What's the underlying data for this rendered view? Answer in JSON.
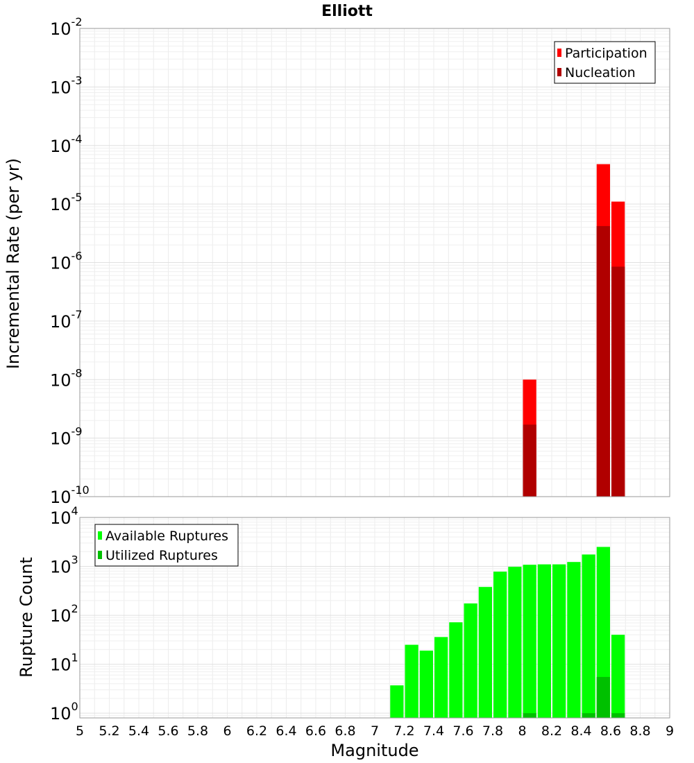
{
  "chart_data": [
    {
      "type": "bar",
      "title": "Elliott",
      "ylabel": "Incremental Rate (per yr)",
      "yscale": "log",
      "ylim": [
        1e-10,
        0.01
      ],
      "xlim": [
        5,
        9
      ],
      "grid": true,
      "legend_position": "top-right",
      "series": [
        {
          "name": "Participation",
          "color": "#ff0000",
          "points": [
            {
              "x": 8.05,
              "y": 1e-08
            },
            {
              "x": 8.55,
              "y": 4.8e-05
            },
            {
              "x": 8.65,
              "y": 1.1e-05
            }
          ]
        },
        {
          "name": "Nucleation",
          "color": "#b00000",
          "points": [
            {
              "x": 8.05,
              "y": 1.7e-09
            },
            {
              "x": 8.55,
              "y": 4.2e-06
            },
            {
              "x": 8.65,
              "y": 8.5e-07
            }
          ]
        }
      ],
      "y_tick_labels": [
        {
          "base": "10",
          "exp": "-10",
          "value": 1e-10
        },
        {
          "base": "10",
          "exp": "-9",
          "value": 1e-09
        },
        {
          "base": "10",
          "exp": "-8",
          "value": 1e-08
        },
        {
          "base": "10",
          "exp": "-7",
          "value": 1e-07
        },
        {
          "base": "10",
          "exp": "-6",
          "value": 1e-06
        },
        {
          "base": "10",
          "exp": "-5",
          "value": 1e-05
        },
        {
          "base": "10",
          "exp": "-4",
          "value": 0.0001
        },
        {
          "base": "10",
          "exp": "-3",
          "value": 0.001
        },
        {
          "base": "10",
          "exp": "-2",
          "value": 0.01
        }
      ]
    },
    {
      "type": "bar",
      "ylabel": "Rupture Count",
      "xlabel": "Magnitude",
      "yscale": "log",
      "ylim": [
        0.8,
        10000
      ],
      "xlim": [
        5,
        9
      ],
      "grid": true,
      "legend_position": "top-left",
      "series": [
        {
          "name": "Available Ruptures",
          "color": "#00ff00",
          "points": [
            {
              "x": 7.15,
              "y": 3.7
            },
            {
              "x": 7.25,
              "y": 25
            },
            {
              "x": 7.35,
              "y": 19
            },
            {
              "x": 7.45,
              "y": 36
            },
            {
              "x": 7.55,
              "y": 72
            },
            {
              "x": 7.65,
              "y": 175
            },
            {
              "x": 7.75,
              "y": 380
            },
            {
              "x": 7.85,
              "y": 780
            },
            {
              "x": 7.95,
              "y": 980
            },
            {
              "x": 8.05,
              "y": 1080
            },
            {
              "x": 8.15,
              "y": 1100
            },
            {
              "x": 8.25,
              "y": 1100
            },
            {
              "x": 8.35,
              "y": 1230
            },
            {
              "x": 8.45,
              "y": 1750
            },
            {
              "x": 8.55,
              "y": 2500
            },
            {
              "x": 8.65,
              "y": 40
            }
          ]
        },
        {
          "name": "Utilized Ruptures",
          "color": "#00c000",
          "points": [
            {
              "x": 8.05,
              "y": 1
            },
            {
              "x": 8.45,
              "y": 1
            },
            {
              "x": 8.55,
              "y": 5.5
            },
            {
              "x": 8.65,
              "y": 1
            }
          ]
        }
      ],
      "y_tick_labels": [
        {
          "base": "10",
          "exp": "0",
          "value": 1
        },
        {
          "base": "10",
          "exp": "1",
          "value": 10
        },
        {
          "base": "10",
          "exp": "2",
          "value": 100
        },
        {
          "base": "10",
          "exp": "3",
          "value": 1000
        },
        {
          "base": "10",
          "exp": "4",
          "value": 10000
        }
      ],
      "x_tick_labels": [
        "5",
        "5.2",
        "5.4",
        "5.6",
        "5.8",
        "6",
        "6.2",
        "6.4",
        "6.6",
        "6.8",
        "7",
        "7.2",
        "7.4",
        "7.6",
        "7.8",
        "8",
        "8.2",
        "8.4",
        "8.6",
        "8.8",
        "9"
      ]
    }
  ]
}
